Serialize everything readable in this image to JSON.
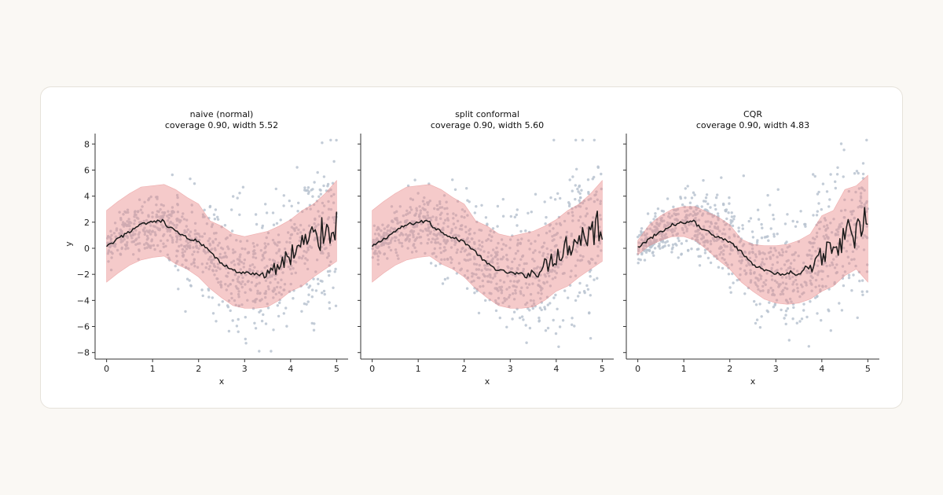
{
  "chart_data": [
    {
      "type": "line",
      "title": "naive (normal)",
      "subtitle": "coverage 0.90, width 5.52",
      "xlabel": "x",
      "ylabel": "y",
      "xlim": [
        -0.25,
        5.25
      ],
      "ylim": [
        -8.5,
        8.8
      ],
      "xticks": [
        0,
        1,
        2,
        3,
        4,
        5
      ],
      "yticks": [
        -8,
        -6,
        -4,
        -2,
        0,
        2,
        4,
        6,
        8
      ],
      "band_color": "#e88a8a",
      "line_color": "#1a1a1a",
      "point_color": "#b8c3d0",
      "prediction": {
        "x": [
          0,
          0.25,
          0.5,
          0.75,
          1.0,
          1.25,
          1.3,
          1.5,
          1.75,
          2.0,
          2.25,
          2.5,
          2.75,
          3.0,
          3.25,
          3.5,
          3.75,
          4.0,
          4.25,
          4.5,
          4.75,
          5.0
        ],
        "y": [
          0.1,
          0.7,
          1.3,
          1.8,
          2.0,
          2.1,
          1.7,
          1.3,
          0.8,
          0.5,
          -0.3,
          -1.2,
          -1.7,
          -1.9,
          -2.0,
          -1.9,
          -1.4,
          -0.5,
          0.3,
          0.8,
          1.3,
          2.0
        ]
      },
      "band": {
        "x": [
          0,
          0.25,
          0.5,
          0.75,
          1.0,
          1.25,
          1.5,
          1.75,
          2.0,
          2.25,
          2.5,
          2.75,
          3.0,
          3.25,
          3.5,
          3.75,
          4.0,
          4.25,
          4.5,
          4.75,
          5.0
        ],
        "lower": [
          -2.6,
          -1.9,
          -1.3,
          -0.9,
          -0.7,
          -0.6,
          -1.2,
          -1.6,
          -2.2,
          -3.1,
          -3.8,
          -4.4,
          -4.6,
          -4.6,
          -4.5,
          -4.0,
          -3.3,
          -2.9,
          -2.2,
          -1.6,
          -1.0
        ],
        "upper": [
          2.9,
          3.6,
          4.2,
          4.7,
          4.8,
          4.9,
          4.5,
          3.9,
          3.4,
          2.1,
          1.7,
          1.1,
          0.9,
          1.1,
          1.3,
          1.7,
          2.2,
          2.9,
          3.4,
          4.2,
          5.2
        ]
      }
    },
    {
      "type": "line",
      "title": "split conformal",
      "subtitle": "coverage 0.90, width 5.60",
      "xlabel": "x",
      "ylabel": "",
      "xlim": [
        -0.25,
        5.25
      ],
      "ylim": [
        -8.5,
        8.8
      ],
      "xticks": [
        0,
        1,
        2,
        3,
        4,
        5
      ],
      "yticks": [
        -8,
        -6,
        -4,
        -2,
        0,
        2,
        4,
        6,
        8
      ],
      "band_color": "#e88a8a",
      "line_color": "#1a1a1a",
      "point_color": "#b8c3d0",
      "prediction": {
        "x": [
          0,
          0.25,
          0.5,
          0.75,
          1.0,
          1.25,
          1.3,
          1.5,
          1.75,
          2.0,
          2.25,
          2.5,
          2.75,
          3.0,
          3.25,
          3.5,
          3.75,
          4.0,
          4.25,
          4.5,
          4.75,
          5.0
        ],
        "y": [
          0.1,
          0.7,
          1.3,
          1.8,
          2.0,
          2.1,
          1.7,
          1.3,
          0.8,
          0.5,
          -0.3,
          -1.2,
          -1.7,
          -1.9,
          -2.0,
          -1.9,
          -1.4,
          -0.5,
          0.3,
          0.8,
          1.3,
          2.0
        ]
      },
      "band": {
        "x": [
          0,
          0.25,
          0.5,
          0.75,
          1.0,
          1.25,
          1.5,
          1.75,
          2.0,
          2.25,
          2.5,
          2.75,
          3.0,
          3.25,
          3.5,
          3.75,
          4.0,
          4.25,
          4.5,
          4.75,
          5.0
        ],
        "lower": [
          -2.6,
          -1.9,
          -1.3,
          -0.9,
          -0.7,
          -0.6,
          -1.2,
          -1.6,
          -2.2,
          -3.1,
          -3.8,
          -4.4,
          -4.6,
          -4.6,
          -4.5,
          -4.0,
          -3.3,
          -2.9,
          -2.2,
          -1.6,
          -1.0
        ],
        "upper": [
          2.9,
          3.6,
          4.2,
          4.7,
          4.8,
          4.9,
          4.5,
          3.9,
          3.4,
          2.1,
          1.7,
          1.1,
          0.9,
          1.1,
          1.3,
          1.7,
          2.2,
          2.9,
          3.4,
          4.2,
          5.2
        ]
      }
    },
    {
      "type": "line",
      "title": "CQR",
      "subtitle": "coverage 0.90, width 4.83",
      "xlabel": "x",
      "ylabel": "",
      "xlim": [
        -0.25,
        5.25
      ],
      "ylim": [
        -8.5,
        8.8
      ],
      "xticks": [
        0,
        1,
        2,
        3,
        4,
        5
      ],
      "yticks": [
        -8,
        -6,
        -4,
        -2,
        0,
        2,
        4,
        6,
        8
      ],
      "band_color": "#e88a8a",
      "line_color": "#1a1a1a",
      "point_color": "#b8c3d0",
      "prediction": {
        "x": [
          0,
          0.25,
          0.5,
          0.75,
          1.0,
          1.25,
          1.3,
          1.5,
          1.75,
          2.0,
          2.25,
          2.5,
          2.75,
          3.0,
          3.25,
          3.5,
          3.75,
          4.0,
          4.25,
          4.5,
          4.75,
          5.0
        ],
        "y": [
          0.1,
          0.7,
          1.3,
          1.8,
          2.0,
          2.1,
          1.7,
          1.3,
          0.8,
          0.5,
          -0.3,
          -1.2,
          -1.7,
          -1.9,
          -2.0,
          -1.9,
          -1.4,
          -0.5,
          0.3,
          0.8,
          1.3,
          2.0
        ]
      },
      "band": {
        "x": [
          0,
          0.25,
          0.5,
          0.75,
          1.0,
          1.25,
          1.5,
          1.75,
          2.0,
          2.25,
          2.5,
          2.75,
          3.0,
          3.25,
          3.5,
          3.75,
          4.0,
          4.25,
          4.5,
          4.75,
          5.0
        ],
        "lower": [
          -0.5,
          0.2,
          0.6,
          0.9,
          0.9,
          0.6,
          -0.1,
          -0.9,
          -1.6,
          -2.6,
          -3.3,
          -3.9,
          -4.2,
          -4.3,
          -4.2,
          -3.9,
          -3.3,
          -2.9,
          -2.1,
          -1.6,
          -2.6
        ],
        "upper": [
          0.6,
          1.8,
          2.5,
          3.0,
          3.2,
          3.2,
          2.8,
          2.4,
          1.8,
          0.7,
          0.3,
          0.2,
          0.2,
          0.3,
          0.6,
          1.1,
          2.5,
          2.9,
          4.5,
          4.8,
          5.6
        ]
      }
    }
  ]
}
